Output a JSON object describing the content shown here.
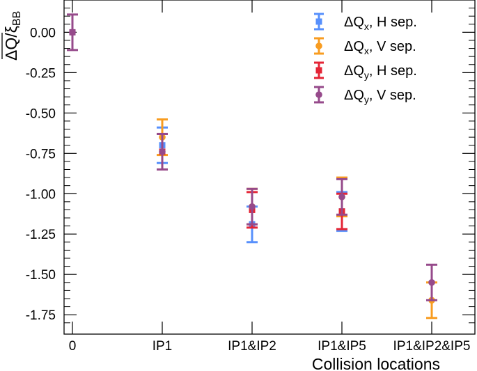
{
  "chart_data": {
    "type": "scatter",
    "title": "",
    "xlabel": "Collision locations",
    "ylabel": "ΔQ/ξBB",
    "ylabel_main": "ΔQ/ξ",
    "ylabel_sub": "BB",
    "categories": [
      "0",
      "IP1",
      "IP1&IP2",
      "IP1&IP5",
      "IP1&IP2&IP5"
    ],
    "ylim": [
      -1.87,
      0.2
    ],
    "yticks": [
      0.0,
      -0.25,
      -0.5,
      -0.75,
      -1.0,
      -1.25,
      -1.5,
      -1.75
    ],
    "ytick_labels": [
      "0.00",
      "-0.25",
      "-0.50",
      "-0.75",
      "-1.00",
      "-1.25",
      "-1.50",
      "-1.75"
    ],
    "legend_position": "top-right",
    "series": [
      {
        "name": "ΔQx, H sep.",
        "label_main": "ΔQ",
        "label_sub": "x",
        "label_rest": ", H sep.",
        "color": "#5790fc",
        "marker": "square",
        "points": [
          {
            "x": 1,
            "y": -0.7,
            "err": 0.11
          },
          {
            "x": 2,
            "y": -1.19,
            "err": 0.11
          },
          {
            "x": 3,
            "y": -1.11,
            "err": 0.12
          }
        ]
      },
      {
        "name": "ΔQx, V sep.",
        "label_main": "ΔQ",
        "label_sub": "x",
        "label_rest": ", V sep.",
        "color": "#f89c20",
        "marker": "circle",
        "points": [
          {
            "x": 1,
            "y": -0.65,
            "err": 0.11
          },
          {
            "x": 2,
            "y": -1.08,
            "err": 0.11
          },
          {
            "x": 3,
            "y": -1.02,
            "err": 0.12
          },
          {
            "x": 4,
            "y": -1.66,
            "err": 0.11
          }
        ]
      },
      {
        "name": "ΔQy, H sep.",
        "label_main": "ΔQ",
        "label_sub": "y",
        "label_rest": ", H sep.",
        "color": "#e42536",
        "marker": "square",
        "points": [
          {
            "x": 1,
            "y": -0.74,
            "err": 0.11
          },
          {
            "x": 2,
            "y": -1.1,
            "err": 0.11
          },
          {
            "x": 3,
            "y": -1.11,
            "err": 0.11
          }
        ]
      },
      {
        "name": "ΔQy, V sep.",
        "label_main": "ΔQ",
        "label_sub": "y",
        "label_rest": ", V sep.",
        "color": "#964a8b",
        "marker": "circle",
        "points": [
          {
            "x": 0,
            "y": 0.0,
            "err": 0.11
          },
          {
            "x": 1,
            "y": -0.74,
            "err": 0.11
          },
          {
            "x": 2,
            "y": -1.08,
            "err": 0.11
          },
          {
            "x": 3,
            "y": -1.02,
            "err": 0.11
          },
          {
            "x": 4,
            "y": -1.55,
            "err": 0.11
          }
        ]
      }
    ],
    "extra_marker_0": {
      "series": "ΔQy, V sep.",
      "x": 0,
      "marker": "square"
    }
  }
}
